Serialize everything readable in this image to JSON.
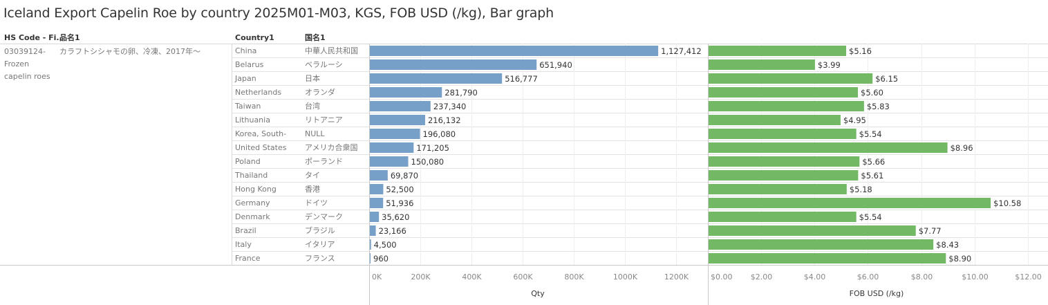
{
  "title": "Iceland Export Capelin Roe by country 2025M01-M03, KGS, FOB USD (/kg), Bar graph",
  "headers": {
    "hs_code": "HS Code - Fi..",
    "product_jp": "品名1",
    "country": "Country1",
    "country_jp": "国名1"
  },
  "row_group": {
    "hs_code_lines": [
      "03039124-",
      "Frozen",
      "capelin roes"
    ],
    "product_jp": "カラフトシシャモの卵、冷凍、2017年～"
  },
  "chart_data": [
    {
      "type": "bar",
      "orientation": "horizontal",
      "xlabel": "Qty",
      "xlim": [
        0,
        1300000
      ],
      "ticks": [
        0,
        200000,
        400000,
        600000,
        800000,
        1000000,
        1200000
      ],
      "tick_labels": [
        "0K",
        "200K",
        "400K",
        "600K",
        "800K",
        "1000K",
        "1200K"
      ],
      "color": "#76a0c8",
      "categories": [
        "China",
        "Belarus",
        "Japan",
        "Netherlands",
        "Taiwan",
        "Lithuania",
        "Korea, South-",
        "United States",
        "Poland",
        "Thailand",
        "Hong Kong",
        "Germany",
        "Denmark",
        "Brazil",
        "Italy",
        "France"
      ],
      "categories_jp": [
        "中華人民共和国",
        "ベラルーシ",
        "日本",
        "オランダ",
        "台湾",
        "リトアニア",
        "NULL",
        "アメリカ合衆国",
        "ポーランド",
        "タイ",
        "香港",
        "ドイツ",
        "デンマーク",
        "ブラジル",
        "イタリア",
        "フランス"
      ],
      "values": [
        1127412,
        651940,
        516777,
        281790,
        237340,
        216132,
        196080,
        171205,
        150080,
        69870,
        52500,
        51936,
        35620,
        23166,
        4500,
        960
      ],
      "value_labels": [
        "1,127,412",
        "651,940",
        "516,777",
        "281,790",
        "237,340",
        "216,132",
        "196,080",
        "171,205",
        "150,080",
        "69,870",
        "52,500",
        "51,936",
        "35,620",
        "23,166",
        "4,500",
        "960"
      ]
    },
    {
      "type": "bar",
      "orientation": "horizontal",
      "xlabel": "FOB USD (/kg)",
      "xlim": [
        0,
        12.6
      ],
      "ticks": [
        0,
        2,
        4,
        6,
        8,
        10,
        12
      ],
      "tick_labels": [
        "$0.00",
        "$2.00",
        "$4.00",
        "$6.00",
        "$8.00",
        "$10.00",
        "$12.00"
      ],
      "color": "#72b865",
      "categories": [
        "China",
        "Belarus",
        "Japan",
        "Netherlands",
        "Taiwan",
        "Lithuania",
        "Korea, South-",
        "United States",
        "Poland",
        "Thailand",
        "Hong Kong",
        "Germany",
        "Denmark",
        "Brazil",
        "Italy",
        "France"
      ],
      "values": [
        5.16,
        3.99,
        6.15,
        5.6,
        5.83,
        4.95,
        5.54,
        8.96,
        5.66,
        5.61,
        5.18,
        10.58,
        5.54,
        7.77,
        8.43,
        8.9
      ],
      "value_labels": [
        "$5.16",
        "$3.99",
        "$6.15",
        "$5.60",
        "$5.83",
        "$4.95",
        "$5.54",
        "$8.96",
        "$5.66",
        "$5.61",
        "$5.18",
        "$10.58",
        "$5.54",
        "$7.77",
        "$8.43",
        "$8.90"
      ]
    }
  ]
}
